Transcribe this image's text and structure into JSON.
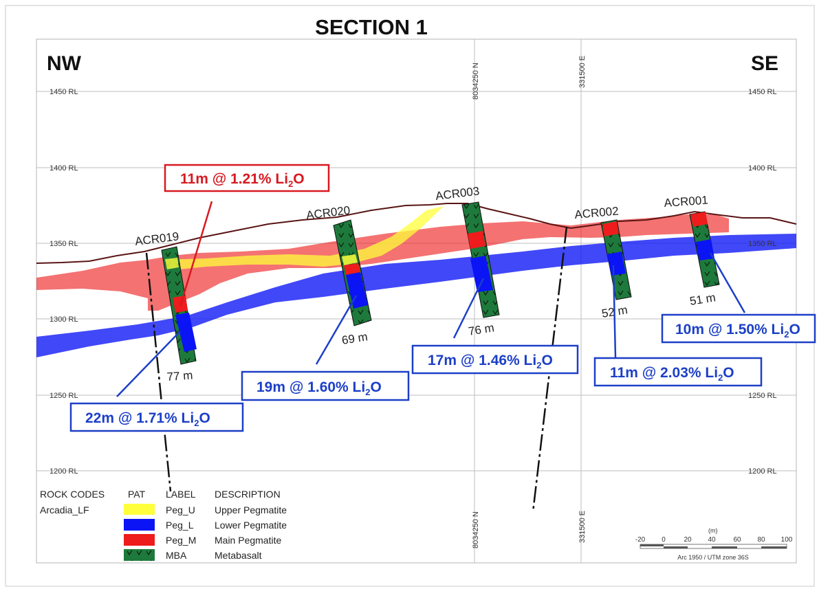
{
  "title": "SECTION 1",
  "directions": {
    "left": "NW",
    "right": "SE"
  },
  "rl_labels": {
    "rl1450": "1450 RL",
    "rl1400": "1400 RL",
    "rl1350": "1350 RL",
    "rl1300": "1300 RL",
    "rl1250": "1250 RL",
    "rl1200": "1200 RL"
  },
  "grid_lines": {
    "northing": "8034250 N",
    "easting": "331500 E"
  },
  "drillholes": {
    "acr019": {
      "name": "ACR019",
      "depth": "77 m"
    },
    "acr020": {
      "name": "ACR020",
      "depth": "69 m"
    },
    "acr003": {
      "name": "ACR003",
      "depth": "76 m"
    },
    "acr002": {
      "name": "ACR002",
      "depth": "52 m"
    },
    "acr001": {
      "name": "ACR001",
      "depth": "51 m"
    }
  },
  "intercepts": {
    "acr019_main": {
      "text": "11m @ 1.21% Li",
      "sub": "2",
      "tail": "O"
    },
    "acr019_lower": {
      "text": "22m @ 1.71% Li",
      "sub": "2",
      "tail": "O"
    },
    "acr020": {
      "text": "19m @ 1.60% Li",
      "sub": "2",
      "tail": "O"
    },
    "acr003": {
      "text": "17m @ 1.46% Li",
      "sub": "2",
      "tail": "O"
    },
    "acr002": {
      "text": "11m @ 2.03% Li",
      "sub": "2",
      "tail": "O"
    },
    "acr001": {
      "text": "10m @ 1.50% Li",
      "sub": "2",
      "tail": "O"
    }
  },
  "legend": {
    "headers": {
      "rock_codes": "ROCK CODES",
      "pat": "PAT",
      "label": "LABEL",
      "description": "DESCRIPTION"
    },
    "rock_code": "Arcadia_LF",
    "rows": [
      {
        "label": "Peg_U",
        "description": "Upper Pegmatite",
        "color": "#ffff3b"
      },
      {
        "label": "Peg_L",
        "description": "Lower Pegmatite",
        "color": "#0b14f5"
      },
      {
        "label": "Peg_M",
        "description": "Main Pegmatite",
        "color": "#ee1c1c"
      },
      {
        "label": "MBA",
        "description": "Metabasalt",
        "color": "#1e7a3c"
      }
    ]
  },
  "scale_bar": {
    "unit": "(m)",
    "ticks": [
      "-20",
      "0",
      "20",
      "40",
      "60",
      "80",
      "100"
    ],
    "projection": "Arc 1950 / UTM zone 36S"
  },
  "colors": {
    "upper_pegmatite": "#ffff3b",
    "lower_pegmatite": "#0b14f5",
    "main_pegmatite": "#ee1c1c",
    "metabasalt": "#1e7a3c",
    "topography": "#5a1414",
    "callout_red": "#d71920",
    "callout_blue": "#1c3fc7"
  }
}
